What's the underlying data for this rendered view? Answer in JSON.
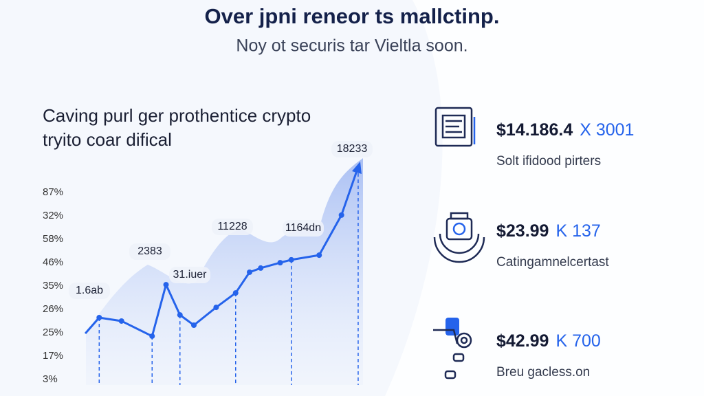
{
  "header": {
    "title": "Over jpni reneor ts mallctinp.",
    "subtitle": "Noy ot securis tar Vieltla soon."
  },
  "chart_data": {
    "type": "line",
    "title_lines": [
      "Caving purl ger prothentice crypto",
      "tryito coar difical"
    ],
    "y_labels": [
      "87%",
      "32%",
      "58%",
      "46%",
      "35%",
      "26%",
      "25%",
      "17%",
      "3%"
    ],
    "x": [
      1,
      6,
      14,
      25,
      30,
      35,
      40,
      48,
      55,
      60,
      64,
      71,
      75,
      85,
      93,
      99
    ],
    "series": [
      {
        "color": "#2563eb",
        "values": [
          19.7,
          26.2,
          24.8,
          18.6,
          39.7,
          27.3,
          23.1,
          30.4,
          36.3,
          44.8,
          46.5,
          48.7,
          49.9,
          51.8,
          68.2,
          87.9
        ]
      }
    ],
    "xlim": [
      0,
      100
    ],
    "ylim": [
      0,
      100
    ],
    "annotations": [
      "1.6ab",
      "2383",
      "31.iuer",
      "11228",
      "1164dn",
      "18233"
    ]
  },
  "stats": [
    {
      "value": "$14.186.4",
      "change": "X 3001",
      "caption": "Solt ifidood pirters"
    },
    {
      "value": "$23.99",
      "change": "K 137",
      "caption": "Catingamnelcertast"
    },
    {
      "value": "$42.99",
      "change": "K 700",
      "caption": "Breu gacless.on"
    }
  ]
}
